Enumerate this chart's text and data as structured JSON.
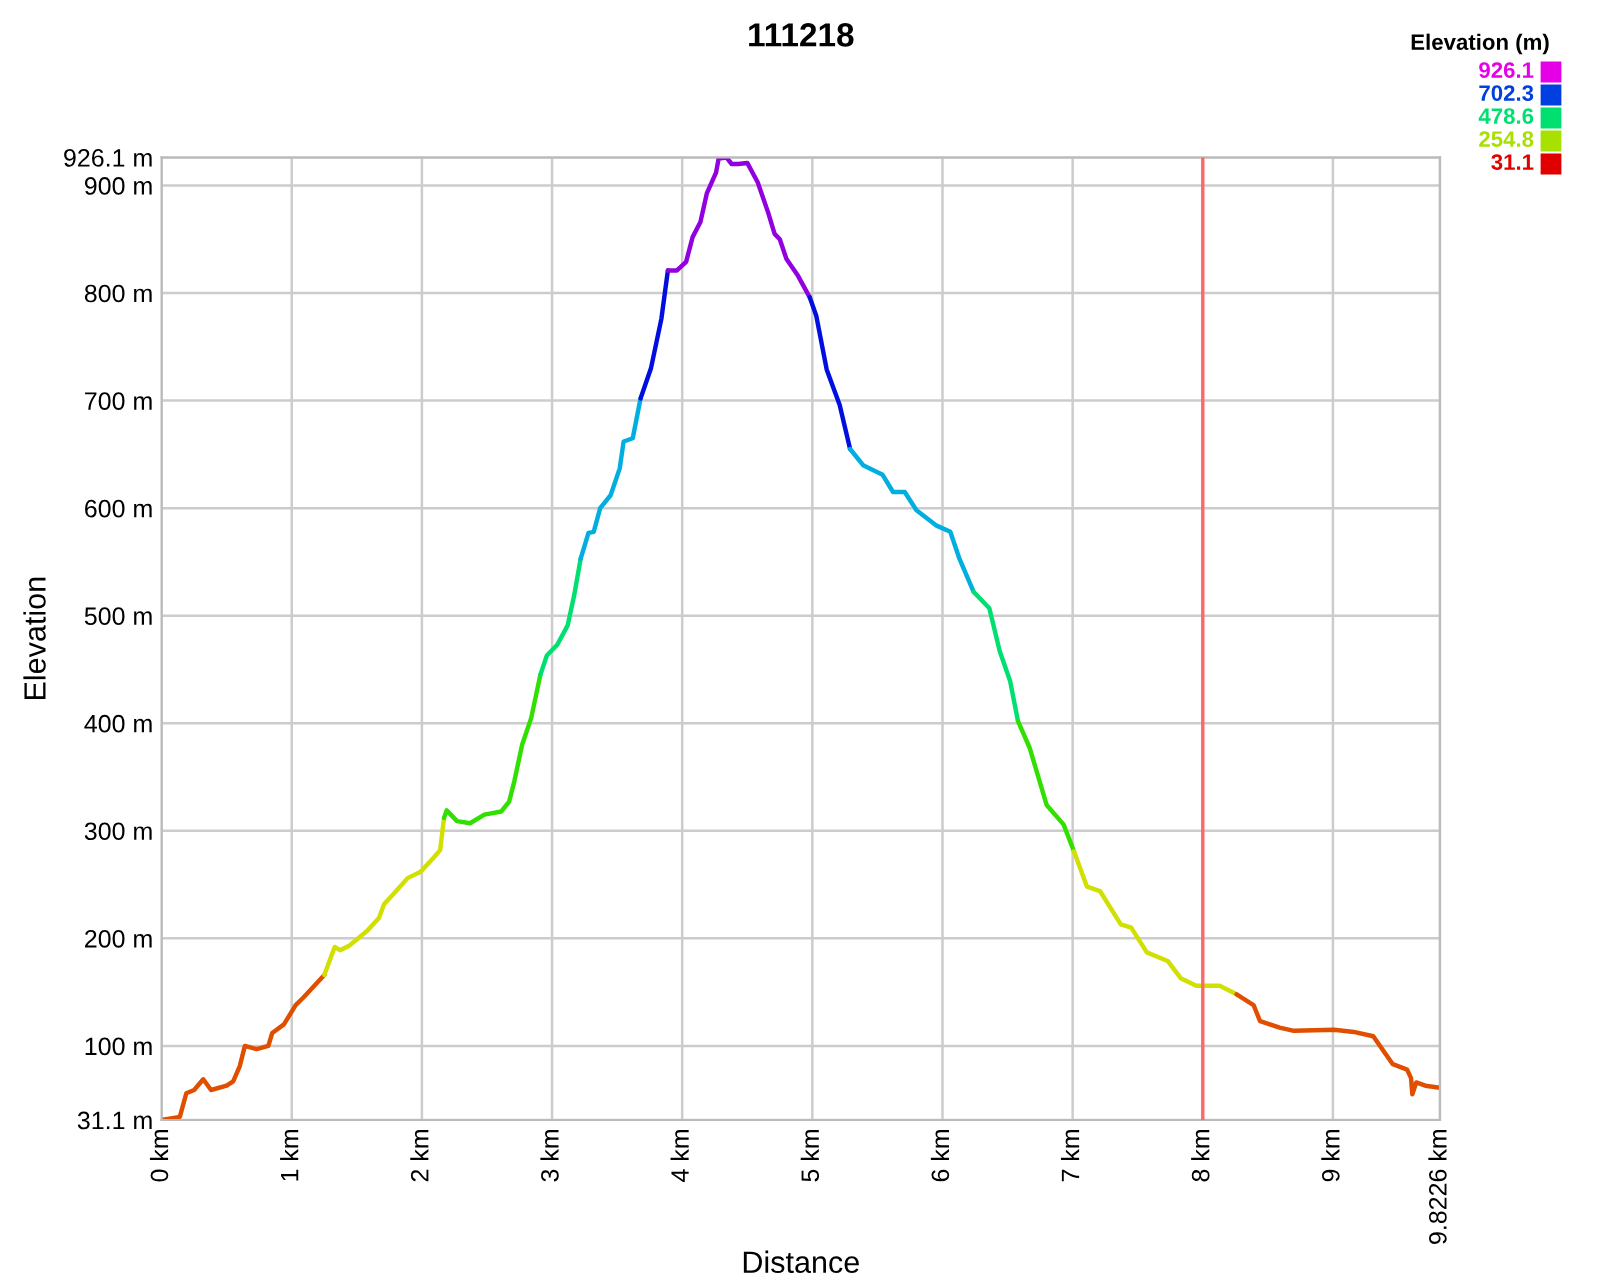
{
  "chart_data": {
    "type": "line",
    "title": "111218",
    "xlabel": "Distance",
    "ylabel": "Elevation",
    "clabel": "Elevation (m)",
    "series": [
      {
        "color": "#e04e00",
        "x": [
          0,
          0.14,
          0.19,
          0.25,
          0.32,
          0.38,
          0.5,
          0.55,
          0.6,
          0.64,
          0.73,
          0.82,
          0.85,
          0.94,
          1.03,
          1.09,
          1.25
        ],
        "values": [
          31.1,
          34,
          56,
          59,
          69,
          59,
          63,
          67,
          81,
          100,
          97,
          100,
          112,
          120,
          138,
          145,
          166
        ]
      },
      {
        "color": "#d1e000",
        "x": [
          1.25,
          1.33,
          1.37,
          1.44,
          1.58,
          1.67,
          1.71,
          1.78,
          1.89,
          1.99,
          2.09,
          2.14,
          2.17
        ],
        "values": [
          166,
          192,
          189,
          193,
          207,
          219,
          232,
          241,
          256,
          262,
          275,
          282,
          312
        ]
      },
      {
        "color": "#31e000",
        "x": [
          2.17,
          2.19,
          2.27,
          2.37,
          2.48,
          2.61,
          2.67,
          2.71,
          2.77,
          2.84,
          2.91
        ],
        "values": [
          312,
          319,
          309,
          307,
          315,
          318,
          327,
          346,
          380,
          405,
          445
        ]
      },
      {
        "color": "#00e070",
        "x": [
          2.91,
          2.96,
          3.04,
          3.12,
          3.17,
          3.22
        ],
        "values": [
          445,
          463,
          473,
          491,
          519,
          553
        ]
      },
      {
        "color": "#00afe0",
        "x": [
          3.22,
          3.28,
          3.32,
          3.37,
          3.45,
          3.52,
          3.55,
          3.62,
          3.68
        ],
        "values": [
          553,
          577,
          578,
          600,
          612,
          637,
          662,
          665,
          702
        ]
      },
      {
        "color": "#000fe0",
        "x": [
          3.68,
          3.76,
          3.84,
          3.89
        ],
        "values": [
          702,
          730,
          776,
          821
        ]
      },
      {
        "color": "#9200e0",
        "x": [
          3.89,
          3.96,
          4.03,
          4.08,
          4.14,
          4.19,
          4.26,
          4.28,
          4.34,
          4.38,
          4.43,
          4.5,
          4.58,
          4.66,
          4.71,
          4.75,
          4.8,
          4.89,
          4.98
        ],
        "values": [
          821,
          821,
          829,
          852,
          866,
          893,
          912,
          925,
          926.1,
          920,
          920,
          921,
          903,
          875,
          855,
          850,
          832,
          816,
          796
        ]
      },
      {
        "color": "#000fe0",
        "x": [
          4.98,
          5.03,
          5.11,
          5.21,
          5.29
        ],
        "values": [
          796,
          779,
          729,
          696,
          655
        ]
      },
      {
        "color": "#00afe0",
        "x": [
          5.29,
          5.39,
          5.54,
          5.62,
          5.71,
          5.8,
          5.95,
          6.06,
          6.13,
          6.24
        ],
        "values": [
          655,
          640,
          631,
          615,
          615,
          598,
          584,
          578,
          553,
          522
        ]
      },
      {
        "color": "#00e070",
        "x": [
          6.24,
          6.36,
          6.44,
          6.52,
          6.58
        ],
        "values": [
          522,
          507,
          467,
          439,
          402
        ]
      },
      {
        "color": "#31e000",
        "x": [
          6.58,
          6.67,
          6.8,
          6.93,
          7.01
        ],
        "values": [
          402,
          377,
          324,
          306,
          281
        ]
      },
      {
        "color": "#d1e000",
        "x": [
          7.01,
          7.11,
          7.21,
          7.37,
          7.45,
          7.57,
          7.73,
          7.83,
          7.95,
          8.13,
          8.26
        ],
        "values": [
          281,
          248,
          244,
          213,
          210,
          187,
          179,
          163,
          156,
          156,
          148
        ]
      },
      {
        "color": "#e04e00",
        "x": [
          8.26,
          8.39,
          8.44,
          8.59,
          8.7,
          9.01,
          9.16,
          9.31,
          9.39,
          9.46,
          9.57,
          9.6,
          9.61,
          9.64,
          9.71,
          9.8226
        ],
        "values": [
          148,
          138,
          123,
          117,
          114,
          115,
          113,
          109,
          95,
          83,
          78,
          70,
          55,
          66,
          63,
          61
        ]
      }
    ],
    "xlim": [
      0,
      9.8226
    ],
    "xticks": [
      {
        "value": 0,
        "label": "0 km"
      },
      {
        "value": 1,
        "label": "1 km"
      },
      {
        "value": 2,
        "label": "2 km"
      },
      {
        "value": 3,
        "label": "3 km"
      },
      {
        "value": 4,
        "label": "4 km"
      },
      {
        "value": 5,
        "label": "5 km"
      },
      {
        "value": 6,
        "label": "6 km"
      },
      {
        "value": 7,
        "label": "7 km"
      },
      {
        "value": 8,
        "label": "8 km"
      },
      {
        "value": 9,
        "label": "9 km"
      },
      {
        "value": 9.8226,
        "label": "9.8226 km"
      }
    ],
    "ylim": [
      31.1,
      926.1
    ],
    "yticks": [
      {
        "value": 31.1,
        "label": "31.1 m"
      },
      {
        "value": 100,
        "label": "100 m"
      },
      {
        "value": 200,
        "label": "200 m"
      },
      {
        "value": 300,
        "label": "300 m"
      },
      {
        "value": 400,
        "label": "400 m"
      },
      {
        "value": 500,
        "label": "500 m"
      },
      {
        "value": 600,
        "label": "600 m"
      },
      {
        "value": 700,
        "label": "700 m"
      },
      {
        "value": 800,
        "label": "800 m"
      },
      {
        "value": 900,
        "label": "900 m"
      },
      {
        "value": 926.1,
        "label": "926.1 m"
      }
    ],
    "cticks": [
      926.1,
      702.3,
      478.6,
      254.8,
      31.1
    ],
    "colors": [
      "#e600e6",
      "#0040e0",
      "#00e070",
      "#a8e000",
      "#e00000"
    ],
    "ref_lines": [
      {
        "axis": "x",
        "value": 8,
        "color": "#ff6666"
      }
    ],
    "grid": true
  }
}
